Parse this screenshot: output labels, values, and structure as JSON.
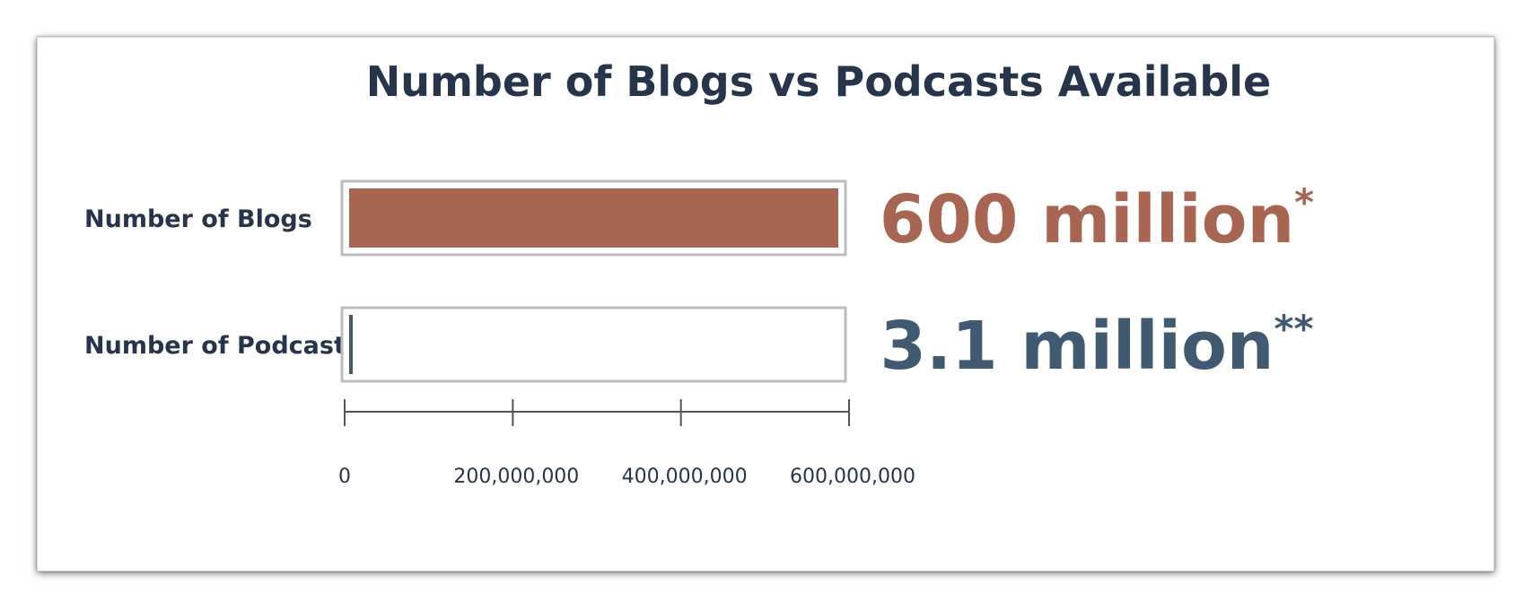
{
  "chart_data": {
    "type": "bar",
    "orientation": "horizontal",
    "title": "Number of Blogs vs Podcasts Available",
    "xlabel": "",
    "ylabel": "",
    "categories": [
      "Number of Blogs",
      "Number of Podcasts"
    ],
    "values": [
      600000000,
      3100000
    ],
    "xlim": [
      0,
      600000000
    ],
    "ticks": [
      0,
      200000000,
      400000000,
      600000000
    ],
    "tick_labels": [
      "0",
      "200,000,000",
      "400,000,000",
      "600,000,000"
    ],
    "value_labels": [
      {
        "text": "600 million",
        "sup": "*"
      },
      {
        "text": "3.1 million",
        "sup": "**"
      }
    ],
    "colors": [
      "#a76552",
      "#405a72"
    ],
    "track_border_color": "#bcbcbc",
    "grid": false,
    "legend": "none"
  }
}
